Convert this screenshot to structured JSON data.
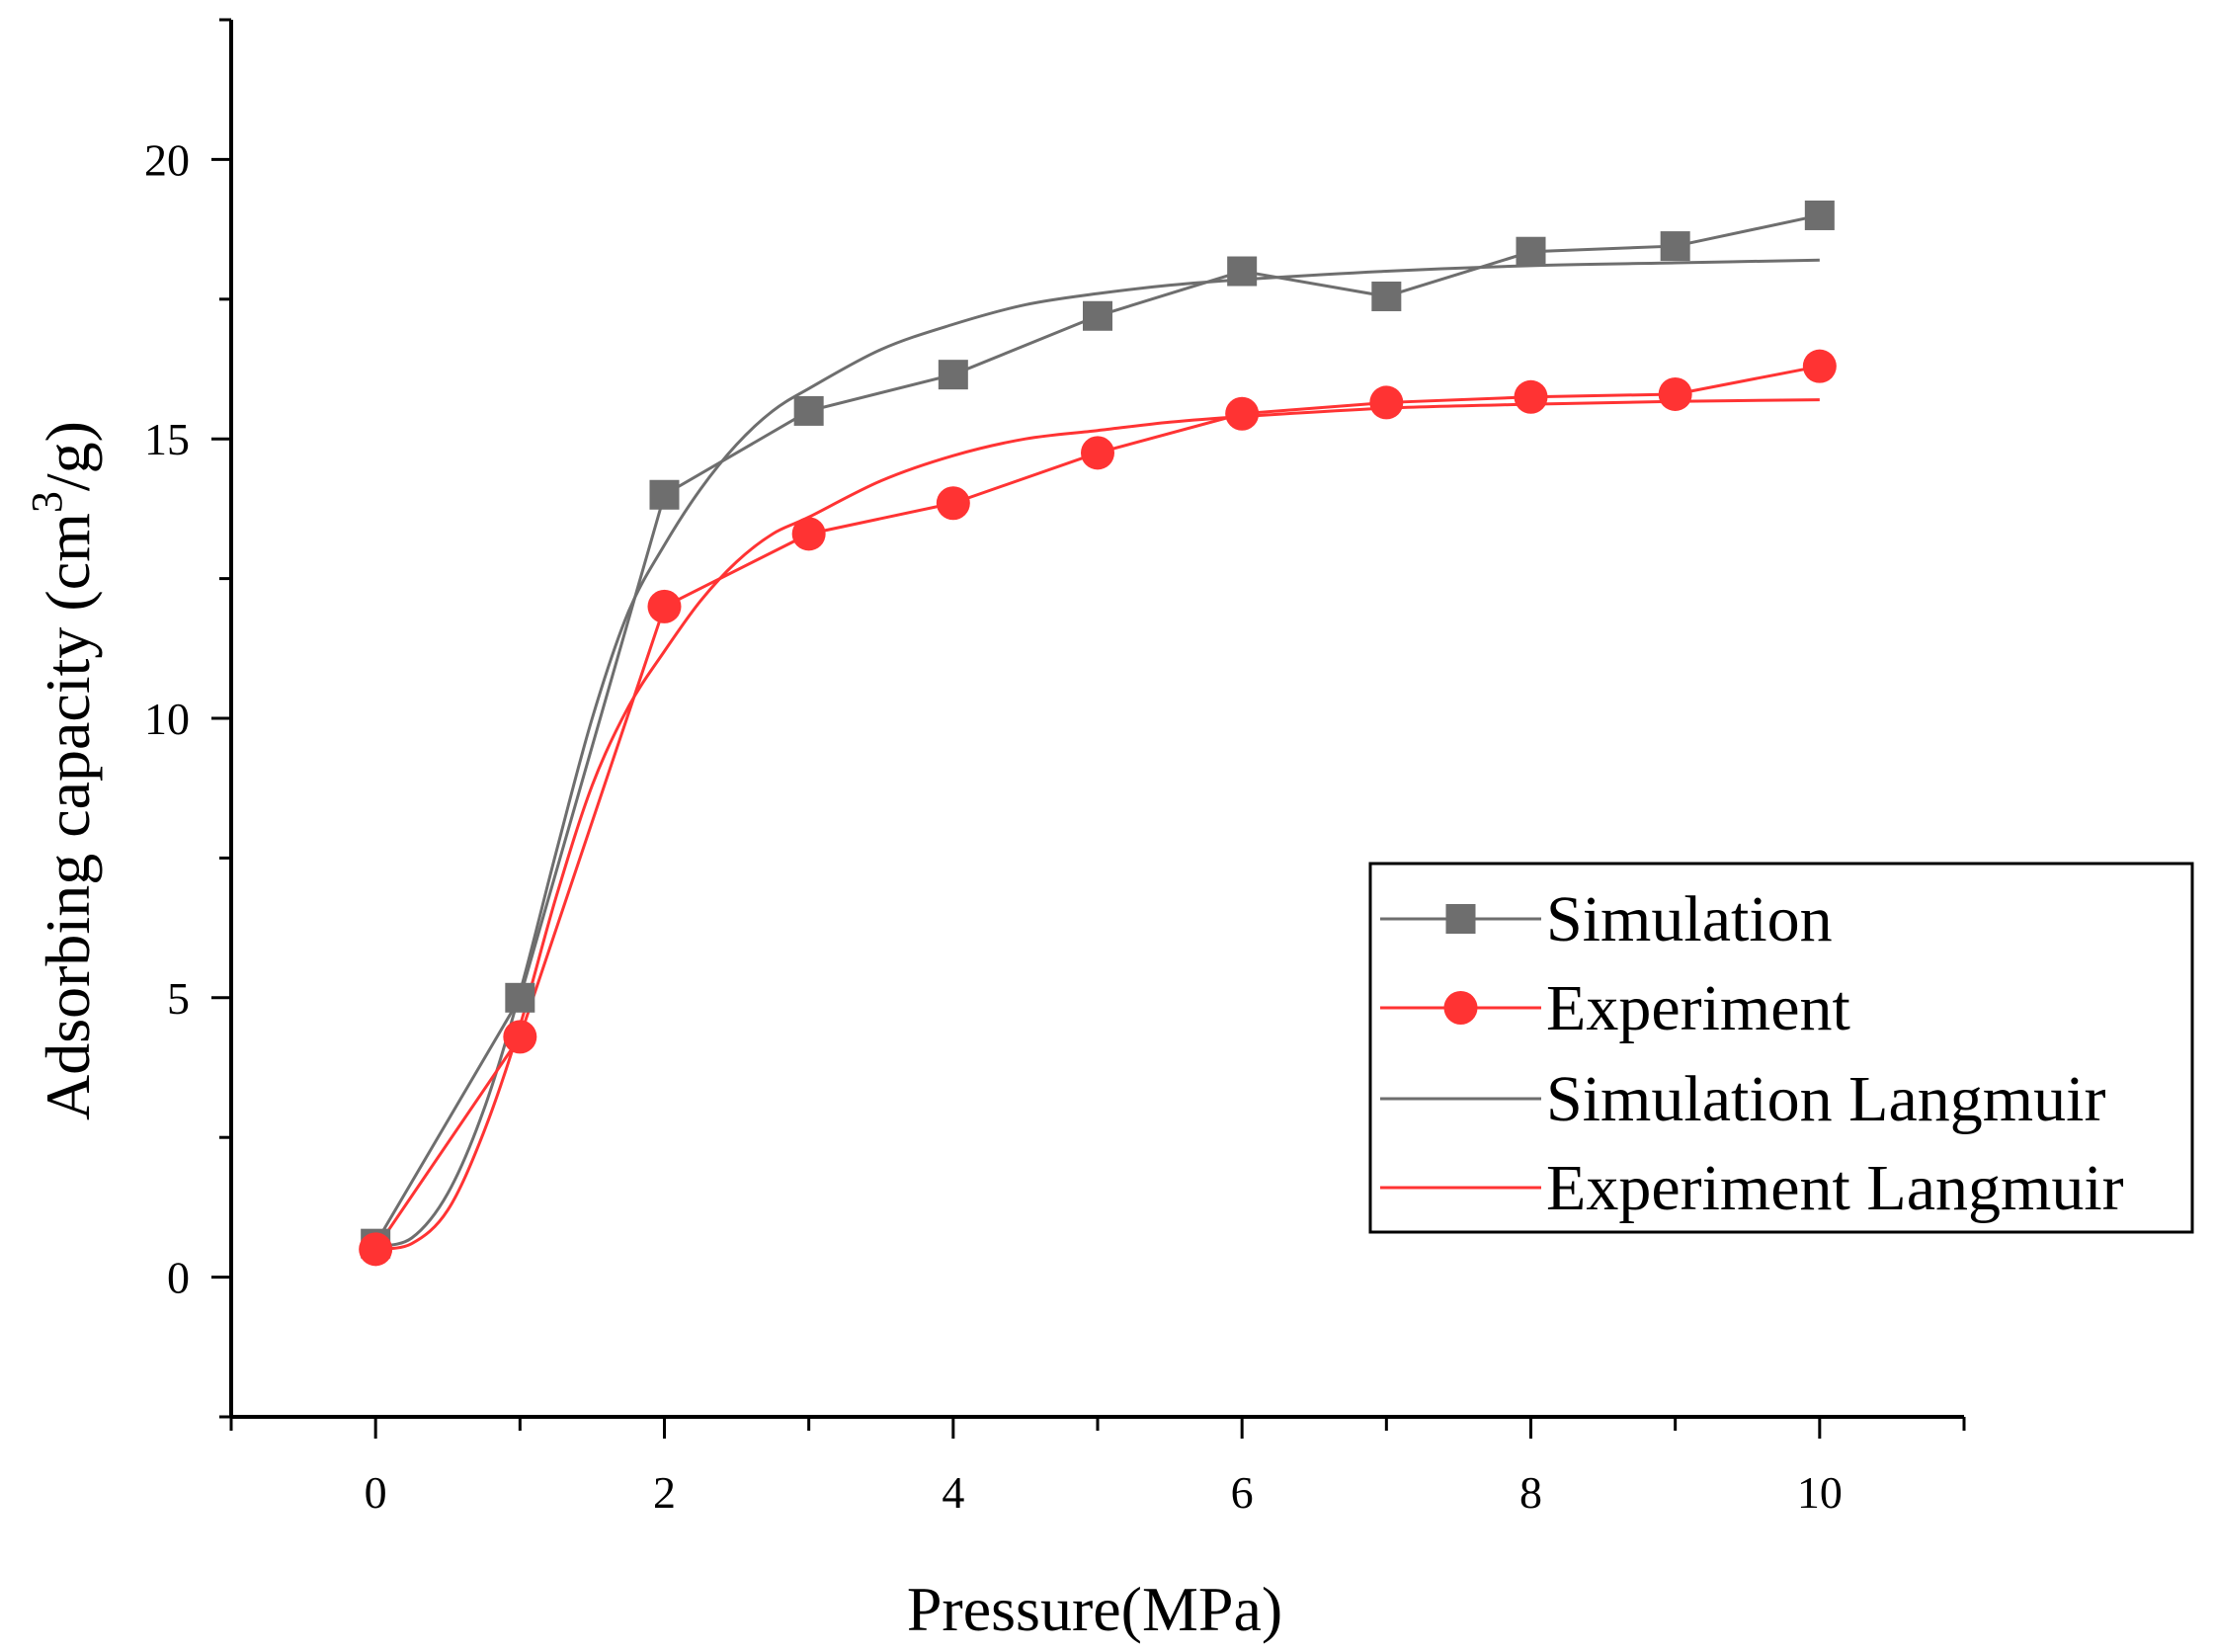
{
  "chart_data": {
    "type": "line",
    "xlabel": "Pressure(MPa)",
    "ylabel_main": "Adsorbing capacity (cm",
    "ylabel_sup": "3",
    "ylabel_tail": "/g)",
    "xlim": [
      -1,
      11
    ],
    "ylim": [
      -2.5,
      22.5
    ],
    "xticks": [
      0,
      2,
      4,
      6,
      8,
      10
    ],
    "xticks_minor": [
      -1,
      1,
      3,
      5,
      7,
      9,
      11
    ],
    "yticks": [
      0,
      5,
      10,
      15,
      20
    ],
    "grid": false,
    "legend_position": "bottom-right",
    "series": [
      {
        "name": "Simulation",
        "color": "#6e6e6e",
        "marker": "square",
        "x": [
          0,
          1,
          2,
          3,
          4,
          5,
          6,
          7,
          8,
          9,
          10
        ],
        "values": [
          0.6,
          5.0,
          14.0,
          15.5,
          16.15,
          17.2,
          18.0,
          17.55,
          18.35,
          18.45,
          19.0
        ]
      },
      {
        "name": "Experiment",
        "color": "#ff3333",
        "marker": "circle",
        "x": [
          0,
          1,
          2,
          3,
          4,
          5,
          6,
          7,
          8,
          9,
          10
        ],
        "values": [
          0.5,
          4.3,
          12.0,
          13.3,
          13.85,
          14.75,
          15.45,
          15.65,
          15.75,
          15.8,
          16.3
        ]
      },
      {
        "name": "Simulation Langmuir",
        "color": "#6e6e6e",
        "marker": "none",
        "x": [
          0,
          0.25,
          0.5,
          0.75,
          1,
          1.25,
          1.5,
          1.75,
          2,
          2.25,
          2.5,
          2.75,
          3,
          3.5,
          4,
          4.5,
          5,
          5.5,
          6,
          7,
          8,
          9,
          10
        ],
        "values": [
          0.55,
          0.7,
          1.5,
          3.0,
          5.1,
          7.6,
          10.0,
          11.9,
          13.1,
          14.1,
          14.9,
          15.5,
          15.9,
          16.6,
          17.05,
          17.4,
          17.6,
          17.75,
          17.85,
          18.0,
          18.1,
          18.15,
          18.2
        ]
      },
      {
        "name": "Experiment Langmuir",
        "color": "#ff3333",
        "marker": "none",
        "x": [
          0,
          0.25,
          0.5,
          0.75,
          1,
          1.25,
          1.5,
          1.75,
          2,
          2.25,
          2.5,
          2.75,
          3,
          3.5,
          4,
          4.5,
          5,
          5.5,
          6,
          7,
          8,
          9,
          10
        ],
        "values": [
          0.5,
          0.6,
          1.2,
          2.6,
          4.5,
          6.8,
          8.8,
          10.2,
          11.2,
          12.1,
          12.8,
          13.3,
          13.6,
          14.25,
          14.7,
          15.0,
          15.15,
          15.3,
          15.4,
          15.55,
          15.62,
          15.67,
          15.7
        ]
      }
    ]
  }
}
